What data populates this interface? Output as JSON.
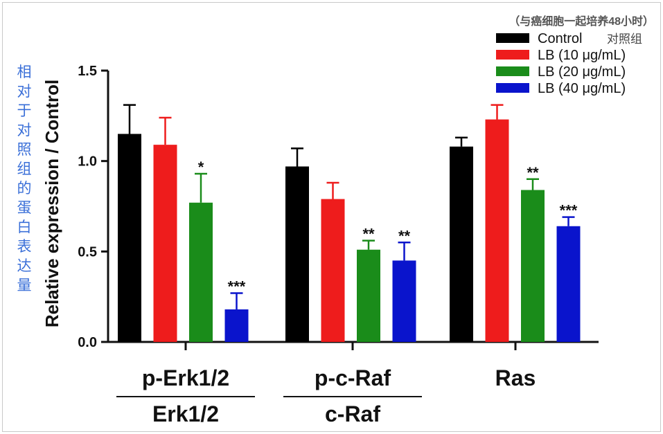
{
  "chart_data": {
    "type": "bar",
    "note": "（与癌细胞一起培养48小时）",
    "ylabel": "Relative expression / Control",
    "ylabel_zh": "相对于对照组的蛋白表达量",
    "ylim": [
      0,
      1.5
    ],
    "yticks": [
      "0.0",
      "0.5",
      "1.0",
      "1.5"
    ],
    "groups": [
      {
        "label": "p-Erk1/2",
        "denominator": "Erk1/2"
      },
      {
        "label": "p-c-Raf",
        "denominator": "c-Raf"
      },
      {
        "label": "Ras",
        "denominator": ""
      }
    ],
    "series": [
      {
        "name": "Control",
        "name_zh": "对照组",
        "color": "#000000",
        "values": [
          1.15,
          0.97,
          1.08
        ],
        "errors": [
          0.16,
          0.1,
          0.05
        ],
        "sig": [
          "",
          "",
          ""
        ]
      },
      {
        "name": "LB (10 μg/mL)",
        "color": "#ee1c1c",
        "values": [
          1.09,
          0.79,
          1.23
        ],
        "errors": [
          0.15,
          0.09,
          0.08
        ],
        "sig": [
          "",
          "",
          ""
        ]
      },
      {
        "name": "LB (20 μg/mL)",
        "color": "#1a8c1a",
        "values": [
          0.77,
          0.51,
          0.84
        ],
        "errors": [
          0.16,
          0.05,
          0.06
        ],
        "sig": [
          "*",
          "**",
          "**"
        ]
      },
      {
        "name": "LB (40 μg/mL)",
        "color": "#0a14cc",
        "values": [
          0.18,
          0.45,
          0.64
        ],
        "errors": [
          0.09,
          0.1,
          0.05
        ],
        "sig": [
          "***",
          "**",
          "***"
        ]
      }
    ],
    "legend_position": "top-right"
  }
}
